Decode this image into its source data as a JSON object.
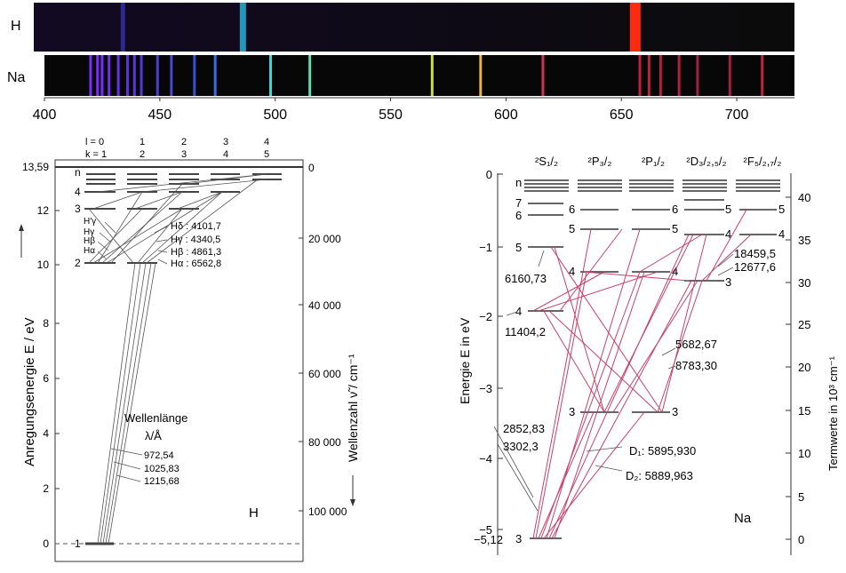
{
  "spectra": {
    "h_label": "H",
    "na_label": "Na",
    "x_ticks": [
      "400",
      "450",
      "500",
      "550",
      "600",
      "650",
      "700"
    ],
    "h_lines": [
      {
        "nm": 434,
        "color": "#3b3bd0",
        "weight": 0.6
      },
      {
        "nm": 486,
        "color": "#28c8f0",
        "weight": 1.0
      },
      {
        "nm": 656,
        "color": "#ff2a10",
        "weight": 2.0
      }
    ],
    "na_lines": [
      {
        "nm": 420,
        "color": "#7a2cff"
      },
      {
        "nm": 423,
        "color": "#7a2cff"
      },
      {
        "nm": 425,
        "color": "#7a2cff"
      },
      {
        "nm": 428,
        "color": "#7030f0"
      },
      {
        "nm": 432,
        "color": "#6a30e8"
      },
      {
        "nm": 436,
        "color": "#6030e0"
      },
      {
        "nm": 439,
        "color": "#5a38e0"
      },
      {
        "nm": 442,
        "color": "#5038d8"
      },
      {
        "nm": 449,
        "color": "#4a40d0"
      },
      {
        "nm": 455,
        "color": "#4848d0"
      },
      {
        "nm": 465,
        "color": "#3850d0"
      },
      {
        "nm": 474,
        "color": "#3a6ae0"
      },
      {
        "nm": 498,
        "color": "#38d8d0"
      },
      {
        "nm": 515,
        "color": "#50e0b0"
      },
      {
        "nm": 568,
        "color": "#c8e040"
      },
      {
        "nm": 589,
        "color": "#f0b040"
      },
      {
        "nm": 616,
        "color": "#d03050"
      },
      {
        "nm": 658,
        "color": "#c02040"
      },
      {
        "nm": 662,
        "color": "#c02040"
      },
      {
        "nm": 667,
        "color": "#b02040"
      },
      {
        "nm": 675,
        "color": "#b02040"
      },
      {
        "nm": 683,
        "color": "#a02040"
      },
      {
        "nm": 697,
        "color": "#a02040"
      },
      {
        "nm": 711,
        "color": "#c02040"
      }
    ]
  },
  "hdiag": {
    "l_row": "l = 0",
    "k_row": "k = 1",
    "cols_l": [
      "1",
      "2",
      "3",
      "4"
    ],
    "cols_k": [
      "2",
      "3",
      "4",
      "5"
    ],
    "yticks": [
      "0",
      "2",
      "4",
      "6",
      "8",
      "10",
      "12",
      "13,59"
    ],
    "ylabel": "Anregungsenergie  E / eV",
    "right_ticks": [
      "0",
      "20 000",
      "40 000",
      "60 000",
      "80 000",
      "100 000"
    ],
    "right_label": "Wellenzahl  ν̃ / cm⁻¹",
    "levels": [
      "n",
      "4",
      "3",
      "2",
      "1"
    ],
    "balmer_labels": [
      "H′γ",
      "Hγ",
      "Hβ",
      "Hα"
    ],
    "balmer_values": [
      "Hδ : 4101,7",
      "Hγ : 4340,5",
      "Hβ : 4861,3",
      "Hα : 6562,8"
    ],
    "wl_title": "Wellenlänge",
    "wl_unit": "λ/Å",
    "lyman": [
      "972,54",
      "1025,83",
      "1215,68"
    ],
    "corner": "H"
  },
  "nadiag": {
    "terms": [
      "²S₁/₂",
      "²P₃/₂",
      "²P₁/₂",
      "²D₃/₂,₅/₂",
      "²F₅/₂,₇/₂"
    ],
    "yticks": [
      "0",
      "−1",
      "−2",
      "−3",
      "−4",
      "−5",
      "−5,12"
    ],
    "ylabel": "Energie E in eV",
    "right_ticks": [
      "0",
      "5",
      "10",
      "15",
      "20",
      "25",
      "30",
      "35",
      "40"
    ],
    "right_label": "Termwerte in 10³ cm⁻¹",
    "s_levels": [
      "n",
      "7",
      "6",
      "5",
      "4",
      "3"
    ],
    "p_levels": [
      "6",
      "5",
      "4",
      "3"
    ],
    "p12_levels": [
      "5",
      "4",
      "3"
    ],
    "d_levels": [
      "6",
      "5",
      "4",
      "3"
    ],
    "f_levels": [
      "5",
      "4"
    ],
    "f2_levels": [
      "5",
      "4"
    ],
    "wls": [
      "6160,73",
      "11404,2",
      "2852,83",
      "3302,3",
      "5682,67",
      "8783,30",
      "18459,5",
      "12677,6"
    ],
    "d1": "D₁: 5895,930",
    "d2": "D₂: 5889,963",
    "corner": "Na"
  }
}
